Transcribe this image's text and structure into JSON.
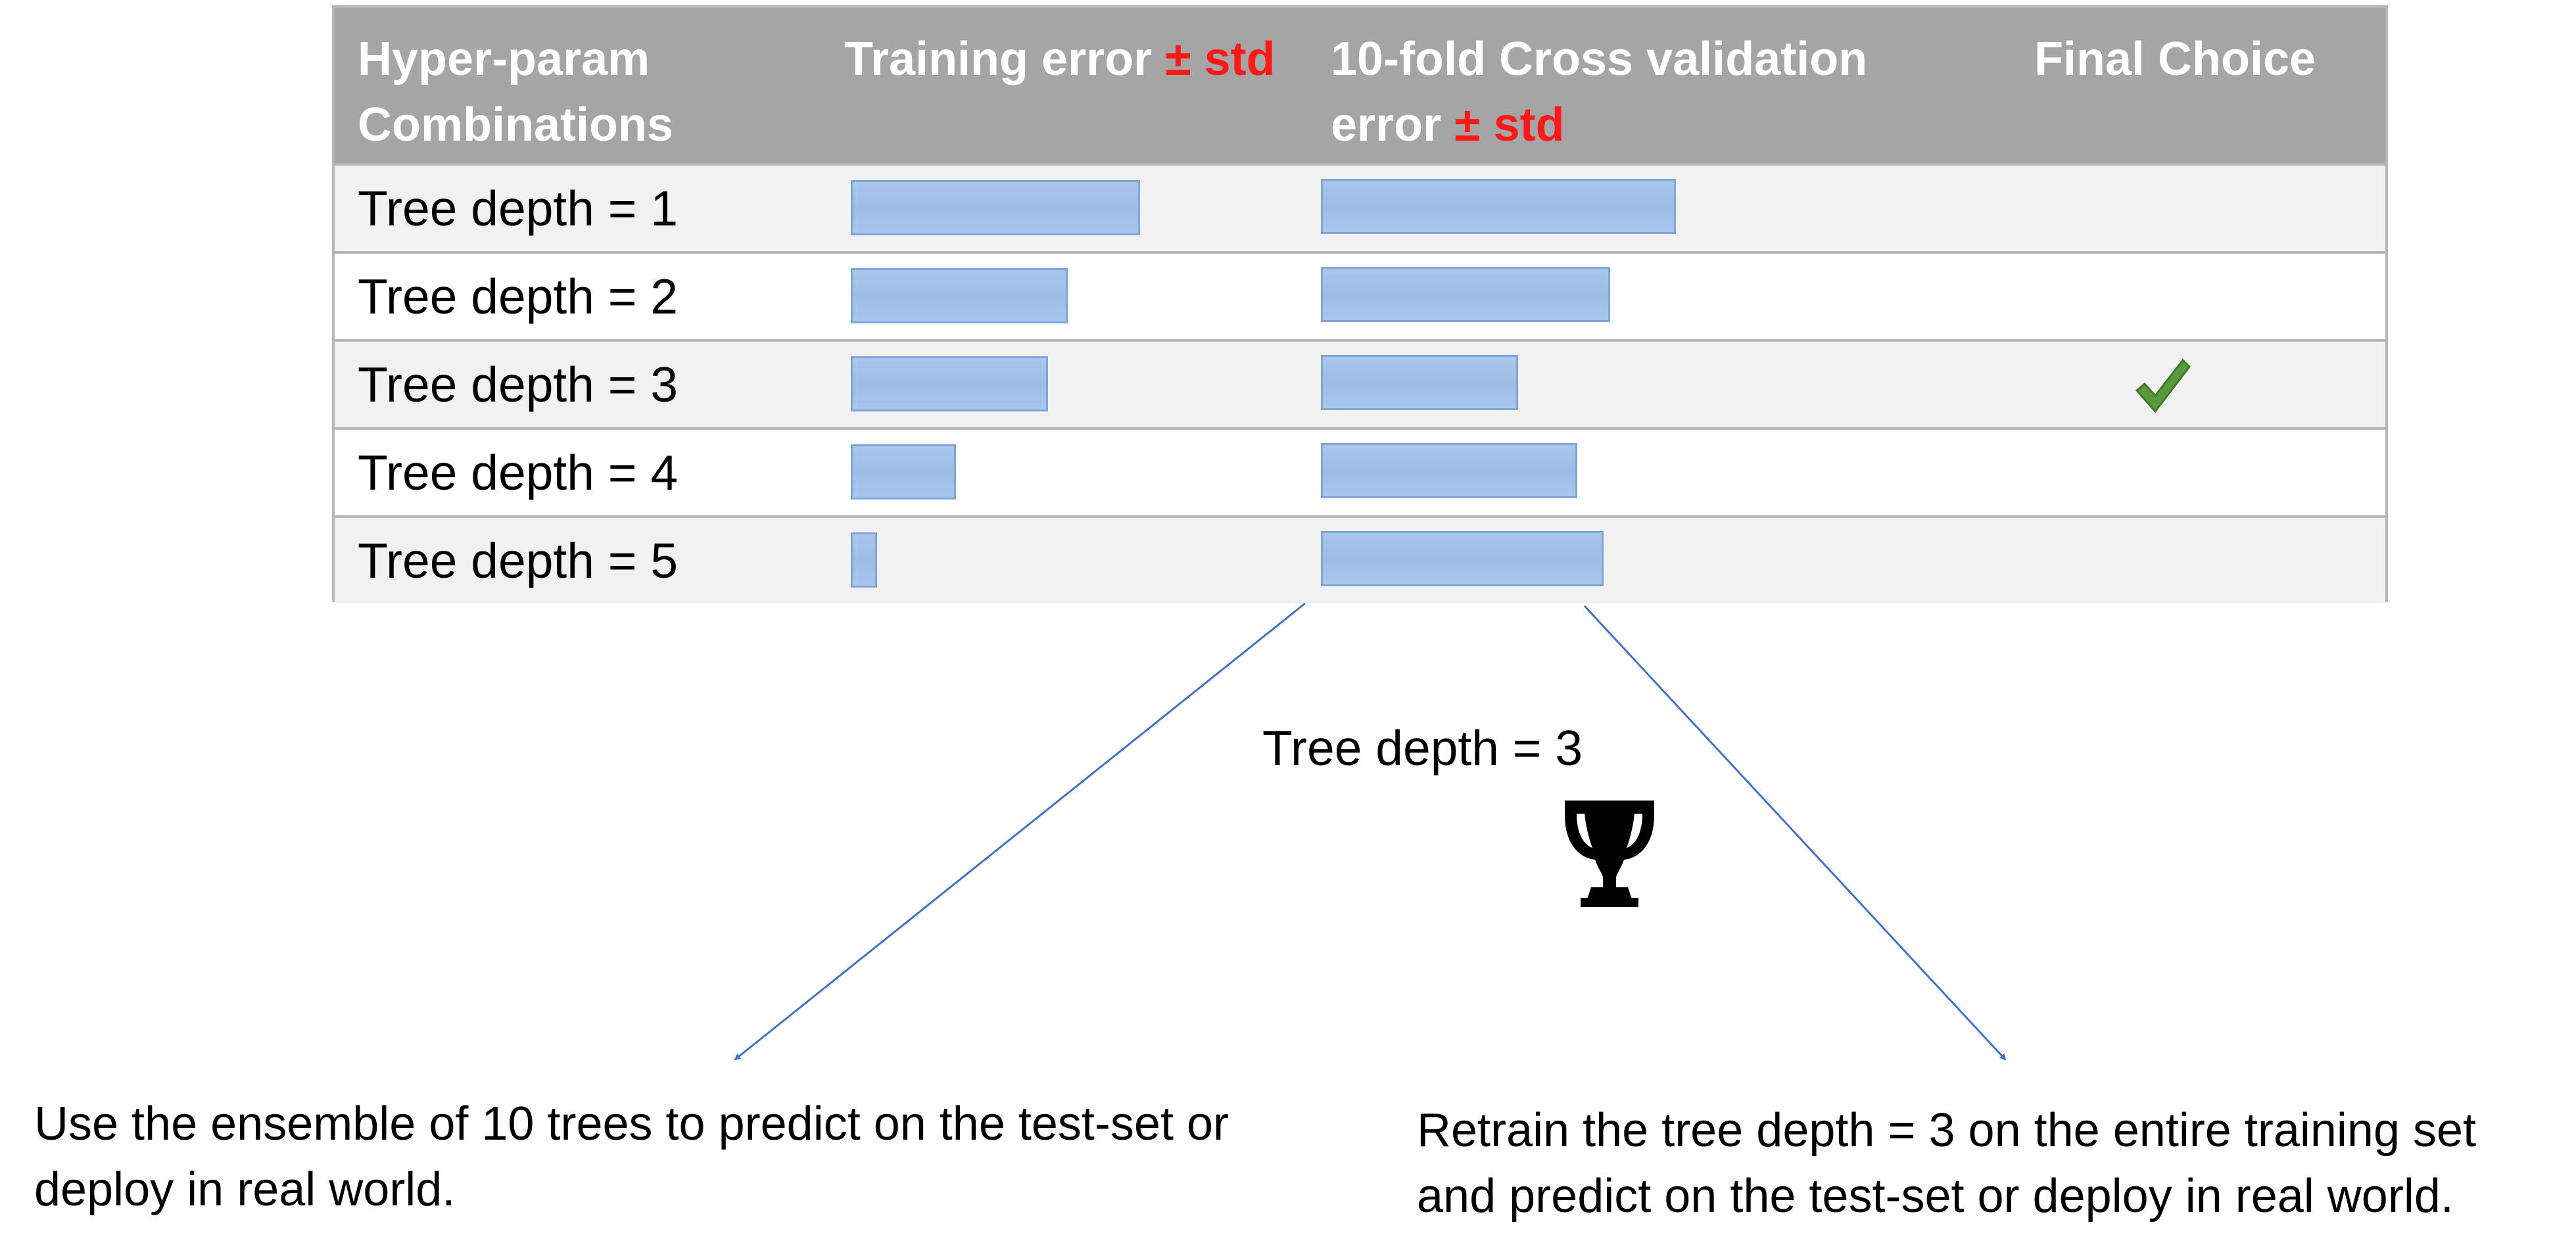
{
  "table": {
    "headers": {
      "hyperparam": "Hyper-param Combinations",
      "training_prefix": "Training error ",
      "training_std": "± std",
      "cv_prefix": "10-fold Cross validation error ",
      "cv_std": "± std",
      "final": "Final Choice"
    },
    "rows": [
      {
        "label": "Tree depth = 1",
        "training_error": 0.44,
        "cv_error": 0.54,
        "final_choice": false
      },
      {
        "label": "Tree depth = 2",
        "training_error": 0.33,
        "cv_error": 0.44,
        "final_choice": false
      },
      {
        "label": "Tree depth = 3",
        "training_error": 0.3,
        "cv_error": 0.3,
        "final_choice": true
      },
      {
        "label": "Tree depth = 4",
        "training_error": 0.16,
        "cv_error": 0.39,
        "final_choice": false
      },
      {
        "label": "Tree depth = 5",
        "training_error": 0.035,
        "cv_error": 0.43,
        "final_choice": false
      }
    ]
  },
  "winner": {
    "label": "Tree depth = 3",
    "icon": "trophy-icon"
  },
  "captions": {
    "left": "Use the ensemble of 10 trees to predict on the test-set or deploy in real world.",
    "right": "Retrain the tree depth = 3 on the entire training set and predict on the test-set or deploy in real world."
  },
  "colors": {
    "header_bg": "#a5a5a5",
    "std_red": "#ff1a1a",
    "bar_fill": "#9dbde6",
    "bar_border": "#7fa6d6",
    "arrow": "#4472c4",
    "check_green": "#5a9a3a"
  }
}
